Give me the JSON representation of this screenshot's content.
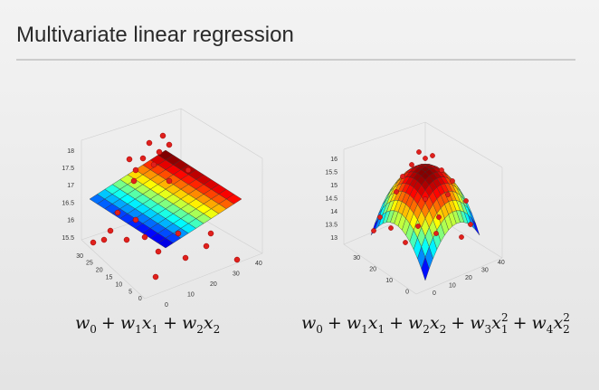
{
  "title": "Multivariate linear regression",
  "left_plot": {
    "z_ticks": [
      18,
      17.5,
      17,
      16.5,
      16,
      15.5
    ],
    "y_ticks": [
      30,
      25,
      20,
      15,
      10,
      5,
      0
    ],
    "x_ticks": [
      0,
      10,
      20,
      30,
      40
    ]
  },
  "right_plot": {
    "z_ticks": [
      16,
      15.5,
      15,
      14.5,
      14,
      13.5,
      13
    ],
    "y_ticks": [
      30,
      20,
      10,
      0
    ],
    "x_ticks": [
      0,
      10,
      20,
      30,
      40
    ]
  },
  "formula_left": [
    {
      "v": "w",
      "sub": "0"
    },
    {
      "v": "+"
    },
    {
      "v": "w",
      "sub": "1"
    },
    {
      "v": "x",
      "sub": "1"
    },
    {
      "v": "+"
    },
    {
      "v": "w",
      "sub": "2"
    },
    {
      "v": "x",
      "sub": "2"
    }
  ],
  "formula_right": [
    {
      "v": "w",
      "sub": "0"
    },
    {
      "v": "+"
    },
    {
      "v": "w",
      "sub": "1"
    },
    {
      "v": "x",
      "sub": "1"
    },
    {
      "v": "+"
    },
    {
      "v": "w",
      "sub": "2"
    },
    {
      "v": "x",
      "sub": "2"
    },
    {
      "v": "+"
    },
    {
      "v": "w",
      "sub": "3"
    },
    {
      "v": "x",
      "sub": "1",
      "sup": "2"
    },
    {
      "v": "+"
    },
    {
      "v": "w",
      "sub": "4"
    },
    {
      "v": "x",
      "sub": "2",
      "sup": "2"
    }
  ]
}
